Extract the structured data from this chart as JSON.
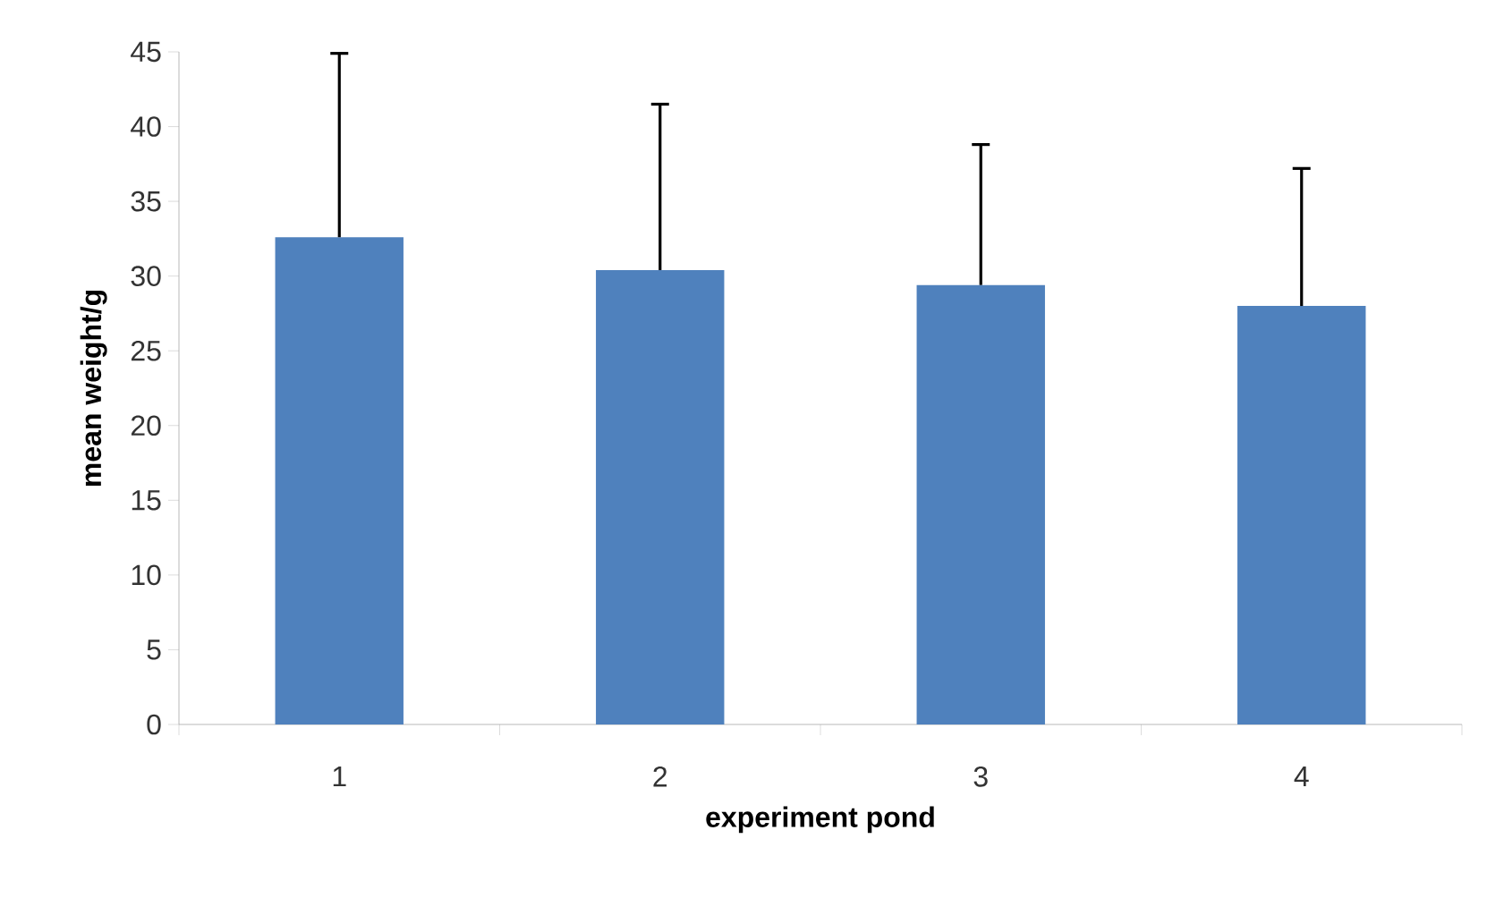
{
  "chart_data": {
    "type": "bar",
    "xlabel": "experiment pond",
    "ylabel": "mean weight/g",
    "categories": [
      "1",
      "2",
      "3",
      "4"
    ],
    "values": [
      32.6,
      30.4,
      29.4,
      28.0
    ],
    "errors": [
      [
        32.6,
        44.9
      ],
      [
        30.4,
        41.5
      ],
      [
        29.4,
        38.8
      ],
      [
        28.0,
        37.2
      ]
    ],
    "color": "#4f81bd",
    "ylim": [
      0,
      45
    ],
    "yticks": [
      0,
      5,
      10,
      15,
      20,
      25,
      30,
      35,
      40,
      45
    ],
    "grid": false
  }
}
